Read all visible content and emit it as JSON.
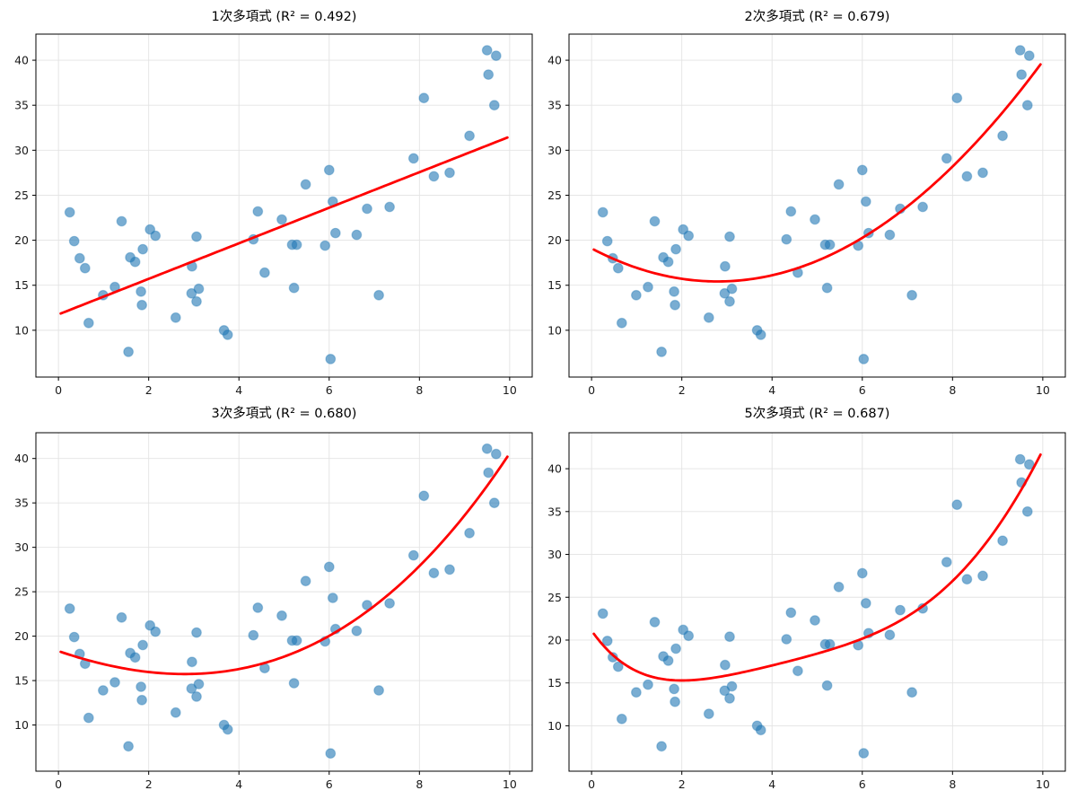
{
  "figure": {
    "background": "#ffffff",
    "grid_color": "#e3e3e3",
    "spine_color": "#000000",
    "tick_label_color": "#1a1a1a"
  },
  "chart_data": {
    "type": "scatter",
    "points": {
      "x": [
        0.25,
        0.35,
        0.47,
        0.59,
        0.67,
        0.99,
        1.25,
        1.4,
        1.55,
        1.59,
        1.7,
        1.83,
        1.85,
        1.87,
        2.03,
        2.15,
        2.6,
        2.95,
        2.96,
        3.06,
        3.06,
        3.11,
        3.67,
        3.75,
        4.32,
        4.42,
        4.57,
        4.95,
        5.18,
        5.22,
        5.28,
        5.48,
        5.91,
        6.0,
        6.03,
        6.08,
        6.14,
        6.61,
        6.84,
        7.1,
        7.34,
        7.87,
        8.1,
        8.32,
        8.67,
        9.11,
        9.5,
        9.53,
        9.66,
        9.7
      ],
      "y": [
        23.1,
        19.9,
        18.0,
        16.9,
        10.8,
        13.9,
        14.8,
        22.1,
        7.6,
        18.1,
        17.6,
        14.3,
        12.8,
        19.0,
        21.2,
        20.5,
        11.4,
        14.1,
        17.1,
        20.4,
        13.2,
        14.6,
        10.0,
        9.5,
        20.1,
        23.2,
        16.4,
        22.3,
        19.5,
        14.7,
        19.5,
        26.2,
        19.4,
        27.8,
        6.8,
        24.3,
        20.8,
        20.6,
        23.5,
        13.9,
        23.7,
        29.1,
        35.8,
        27.1,
        27.5,
        31.6,
        41.1,
        38.4,
        35.0,
        40.5
      ]
    },
    "x_ticks": [
      0,
      2,
      4,
      6,
      8,
      10
    ],
    "y_ticks": [
      10,
      15,
      20,
      25,
      30,
      35,
      40
    ],
    "xlim": [
      -0.5,
      10.5
    ],
    "grid": true,
    "point_color": "#1f77b4",
    "point_opacity": 0.6,
    "fit_line_color": "#ff0000",
    "curve_x_range": [
      0.05,
      9.95
    ],
    "subplots": [
      {
        "id": "degree-1",
        "title": "1次多項式 (R² = 0.492)",
        "fit_degree": 1,
        "r_squared": 0.492,
        "ylim": [
          4.8,
          42.9
        ]
      },
      {
        "id": "degree-2",
        "title": "2次多項式 (R² = 0.679)",
        "fit_degree": 2,
        "r_squared": 0.679,
        "ylim": [
          4.8,
          42.9
        ]
      },
      {
        "id": "degree-3",
        "title": "3次多項式 (R² = 0.680)",
        "fit_degree": 3,
        "r_squared": 0.68,
        "ylim": [
          4.8,
          42.9
        ]
      },
      {
        "id": "degree-5",
        "title": "5次多項式 (R² = 0.687)",
        "fit_degree": 5,
        "r_squared": 0.687,
        "ylim": [
          4.7,
          44.2
        ]
      }
    ]
  }
}
